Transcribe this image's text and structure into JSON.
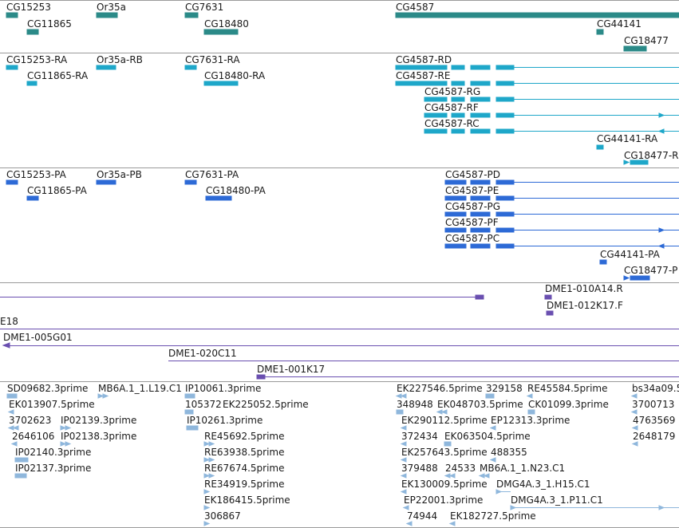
{
  "tracks": {
    "genes": {
      "color": "#2b8a88",
      "labels": [
        "CG15253",
        "Or35a",
        "CG7631",
        "CG4587",
        "CG11865",
        "CG18480",
        "CG44141",
        "CG18477"
      ]
    },
    "transcripts": {
      "color": "#1ea7c9",
      "labels": [
        "CG15253-RA",
        "Or35a-RB",
        "CG7631-RA",
        "CG4587-RD",
        "CG11865-RA",
        "CG18480-RA",
        "CG4587-RE",
        "CG4587-RG",
        "CG4587-RF",
        "CG4587-RC",
        "CG44141-RA",
        "CG18477-R"
      ]
    },
    "proteins": {
      "color": "#2d6ad6",
      "labels": [
        "CG15253-PA",
        "Or35a-PB",
        "CG7631-PA",
        "CG11865-PA",
        "CG18480-PA",
        "CG4587-PD",
        "CG4587-PE",
        "CG4587-PG",
        "CG4587-PF",
        "CG4587-PC",
        "CG44141-PA",
        "CG18477-P"
      ]
    },
    "clones": {
      "color": "#6a4fb0",
      "labels": [
        "DME1-010A14.R",
        "DME1-012K17.F",
        "E18",
        "DME1-005G01",
        "DME1-020C11",
        "DME1-001K17"
      ]
    },
    "ests": {
      "color": "#8fb7dc",
      "labels": [
        "SD09682.3prime",
        "MB6A.1_1.L19.C1",
        "IP10061.3prime",
        "EK227546.5prime",
        "329158",
        "RE45584.5prime",
        "bs34a09.5",
        "EK013907.5prime",
        "105372",
        "EK225052.5prime",
        "348948",
        "EK048703.5prime",
        "CK01099.3prime",
        "3700713",
        "3702623",
        "IP02139.3prime",
        "IP10261.3prime",
        "EK290112.5prime",
        "EP12313.3prime",
        "4763569",
        "2646106",
        "IP02138.3prime",
        "372434",
        "EK063504.5prime",
        "2648179",
        "IP02140.3prime",
        "RE45692.5prime",
        "EK257643.5prime",
        "488355",
        "IP02137.3prime",
        "RE63938.5prime",
        "379488",
        "24533",
        "MB6A.1_1.N23.C1",
        "RE67674.5prime",
        "EK130009.5prime",
        "DMG4A.3_1.H15.C1",
        "RE34919.5prime",
        "EP22001.3prime",
        "DMG4A.3_1.P11.C1",
        "EK186415.5prime",
        "306867",
        "74944",
        "EK182727.5prime"
      ]
    }
  }
}
